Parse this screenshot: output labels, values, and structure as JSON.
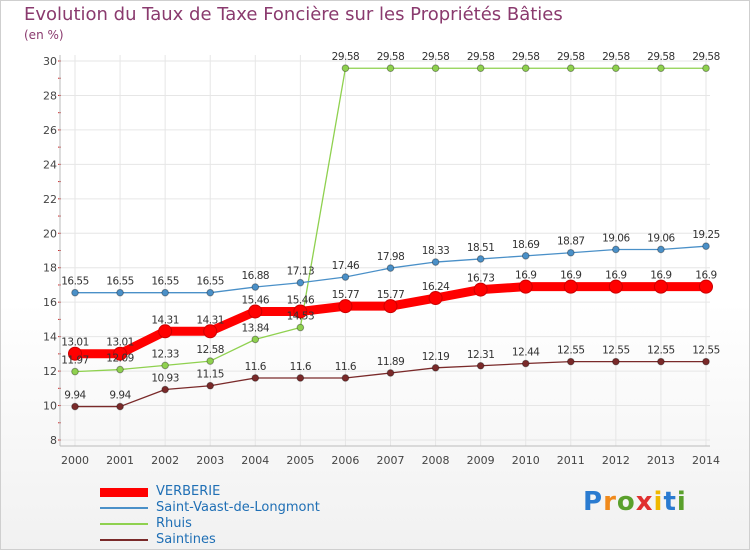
{
  "header": {
    "title": "Evolution du Taux de Taxe Foncière sur les Propriétés Bâties",
    "unit": "(en %)"
  },
  "logo": {
    "text": "Proxiti",
    "colors": [
      "#2a7bd0",
      "#f08a1c",
      "#5aa02c",
      "#e03030",
      "#f0b800",
      "#2a7bd0",
      "#5aa02c"
    ]
  },
  "chart_data": {
    "type": "line",
    "x": [
      "2000",
      "2001",
      "2002",
      "2003",
      "2004",
      "2005",
      "2006",
      "2007",
      "2008",
      "2009",
      "2010",
      "2011",
      "2012",
      "2013",
      "2014"
    ],
    "ylim": [
      8,
      30
    ],
    "yticks": [
      8,
      10,
      12,
      14,
      16,
      18,
      20,
      22,
      24,
      26,
      28,
      30
    ],
    "grid": true,
    "legend_position": "bottom-left",
    "series": [
      {
        "name": "VERBERIE",
        "color": "#ff0000",
        "values": [
          13.01,
          13.01,
          14.31,
          14.31,
          15.46,
          15.46,
          15.77,
          15.77,
          16.24,
          16.73,
          16.9,
          16.9,
          16.9,
          16.9,
          16.9
        ],
        "labels": [
          "13.01",
          "13.01",
          "14.31",
          "14.31",
          "15.46",
          "15.46",
          "15.77",
          "15.77",
          "16.24",
          "16.73",
          "16.9",
          "16.9",
          "16.9",
          "16.9",
          "16.9"
        ]
      },
      {
        "name": "Saint-Vaast-de-Longmont",
        "color": "#4a90c8",
        "values": [
          16.55,
          16.55,
          16.55,
          16.55,
          16.88,
          17.13,
          17.46,
          17.98,
          18.33,
          18.51,
          18.69,
          18.87,
          19.06,
          19.06,
          19.25
        ],
        "labels": [
          "16.55",
          "16.55",
          "16.55",
          "16.55",
          "16.88",
          "17.13",
          "17.46",
          "17.98",
          "18.33",
          "18.51",
          "18.69",
          "18.87",
          "19.06",
          "19.06",
          "19.25"
        ]
      },
      {
        "name": "Rhuis",
        "color": "#8fd14f",
        "values": [
          11.97,
          12.09,
          12.33,
          12.58,
          13.84,
          14.53,
          29.58,
          29.58,
          29.58,
          29.58,
          29.58,
          29.58,
          29.58,
          29.58,
          29.58
        ],
        "labels": [
          "11.97",
          "12.09",
          "12.33",
          "12.58",
          "13.84",
          "14.53",
          "29.58",
          "29.58",
          "29.58",
          "29.58",
          "29.58",
          "29.58",
          "29.58",
          "29.58",
          "29.58"
        ]
      },
      {
        "name": "Saintines",
        "color": "#7a2a2a",
        "values": [
          9.94,
          9.94,
          10.93,
          11.15,
          11.6,
          11.6,
          11.6,
          11.89,
          12.19,
          12.31,
          12.44,
          12.55,
          12.55,
          12.55,
          12.55
        ],
        "labels": [
          "9.94",
          "9.94",
          "10.93",
          "11.15",
          "11.6",
          "11.6",
          "11.6",
          "11.89",
          "12.19",
          "12.31",
          "12.44",
          "12.55",
          "12.55",
          "12.55",
          "12.55"
        ]
      }
    ]
  }
}
